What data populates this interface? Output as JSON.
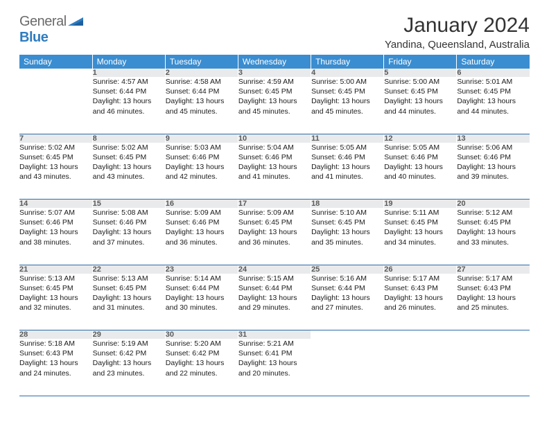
{
  "logo": {
    "text1": "General",
    "text2": "Blue"
  },
  "title": "January 2024",
  "location": "Yandina, Queensland, Australia",
  "colors": {
    "header_bg": "#3a8dd0",
    "header_fg": "#ffffff",
    "daynum_bg": "#e9eaec",
    "daynum_fg": "#5a5a5a",
    "divider": "#2c6da8",
    "logo_gray": "#6a6a6a",
    "logo_blue": "#2f7cc0"
  },
  "daysOfWeek": [
    "Sunday",
    "Monday",
    "Tuesday",
    "Wednesday",
    "Thursday",
    "Friday",
    "Saturday"
  ],
  "weeks": [
    {
      "nums": [
        "",
        "1",
        "2",
        "3",
        "4",
        "5",
        "6"
      ],
      "cells": [
        {},
        {
          "sunrise": "4:57 AM",
          "sunset": "6:44 PM",
          "dh": "13",
          "dm": "46"
        },
        {
          "sunrise": "4:58 AM",
          "sunset": "6:44 PM",
          "dh": "13",
          "dm": "45"
        },
        {
          "sunrise": "4:59 AM",
          "sunset": "6:45 PM",
          "dh": "13",
          "dm": "45"
        },
        {
          "sunrise": "5:00 AM",
          "sunset": "6:45 PM",
          "dh": "13",
          "dm": "45"
        },
        {
          "sunrise": "5:00 AM",
          "sunset": "6:45 PM",
          "dh": "13",
          "dm": "44"
        },
        {
          "sunrise": "5:01 AM",
          "sunset": "6:45 PM",
          "dh": "13",
          "dm": "44"
        }
      ]
    },
    {
      "nums": [
        "7",
        "8",
        "9",
        "10",
        "11",
        "12",
        "13"
      ],
      "cells": [
        {
          "sunrise": "5:02 AM",
          "sunset": "6:45 PM",
          "dh": "13",
          "dm": "43"
        },
        {
          "sunrise": "5:02 AM",
          "sunset": "6:45 PM",
          "dh": "13",
          "dm": "43"
        },
        {
          "sunrise": "5:03 AM",
          "sunset": "6:46 PM",
          "dh": "13",
          "dm": "42"
        },
        {
          "sunrise": "5:04 AM",
          "sunset": "6:46 PM",
          "dh": "13",
          "dm": "41"
        },
        {
          "sunrise": "5:05 AM",
          "sunset": "6:46 PM",
          "dh": "13",
          "dm": "41"
        },
        {
          "sunrise": "5:05 AM",
          "sunset": "6:46 PM",
          "dh": "13",
          "dm": "40"
        },
        {
          "sunrise": "5:06 AM",
          "sunset": "6:46 PM",
          "dh": "13",
          "dm": "39"
        }
      ]
    },
    {
      "nums": [
        "14",
        "15",
        "16",
        "17",
        "18",
        "19",
        "20"
      ],
      "cells": [
        {
          "sunrise": "5:07 AM",
          "sunset": "6:46 PM",
          "dh": "13",
          "dm": "38"
        },
        {
          "sunrise": "5:08 AM",
          "sunset": "6:46 PM",
          "dh": "13",
          "dm": "37"
        },
        {
          "sunrise": "5:09 AM",
          "sunset": "6:46 PM",
          "dh": "13",
          "dm": "36"
        },
        {
          "sunrise": "5:09 AM",
          "sunset": "6:45 PM",
          "dh": "13",
          "dm": "36"
        },
        {
          "sunrise": "5:10 AM",
          "sunset": "6:45 PM",
          "dh": "13",
          "dm": "35"
        },
        {
          "sunrise": "5:11 AM",
          "sunset": "6:45 PM",
          "dh": "13",
          "dm": "34"
        },
        {
          "sunrise": "5:12 AM",
          "sunset": "6:45 PM",
          "dh": "13",
          "dm": "33"
        }
      ]
    },
    {
      "nums": [
        "21",
        "22",
        "23",
        "24",
        "25",
        "26",
        "27"
      ],
      "cells": [
        {
          "sunrise": "5:13 AM",
          "sunset": "6:45 PM",
          "dh": "13",
          "dm": "32"
        },
        {
          "sunrise": "5:13 AM",
          "sunset": "6:45 PM",
          "dh": "13",
          "dm": "31"
        },
        {
          "sunrise": "5:14 AM",
          "sunset": "6:44 PM",
          "dh": "13",
          "dm": "30"
        },
        {
          "sunrise": "5:15 AM",
          "sunset": "6:44 PM",
          "dh": "13",
          "dm": "29"
        },
        {
          "sunrise": "5:16 AM",
          "sunset": "6:44 PM",
          "dh": "13",
          "dm": "27"
        },
        {
          "sunrise": "5:17 AM",
          "sunset": "6:43 PM",
          "dh": "13",
          "dm": "26"
        },
        {
          "sunrise": "5:17 AM",
          "sunset": "6:43 PM",
          "dh": "13",
          "dm": "25"
        }
      ]
    },
    {
      "nums": [
        "28",
        "29",
        "30",
        "31",
        "",
        "",
        ""
      ],
      "cells": [
        {
          "sunrise": "5:18 AM",
          "sunset": "6:43 PM",
          "dh": "13",
          "dm": "24"
        },
        {
          "sunrise": "5:19 AM",
          "sunset": "6:42 PM",
          "dh": "13",
          "dm": "23"
        },
        {
          "sunrise": "5:20 AM",
          "sunset": "6:42 PM",
          "dh": "13",
          "dm": "22"
        },
        {
          "sunrise": "5:21 AM",
          "sunset": "6:41 PM",
          "dh": "13",
          "dm": "20"
        },
        {},
        {},
        {}
      ]
    }
  ]
}
